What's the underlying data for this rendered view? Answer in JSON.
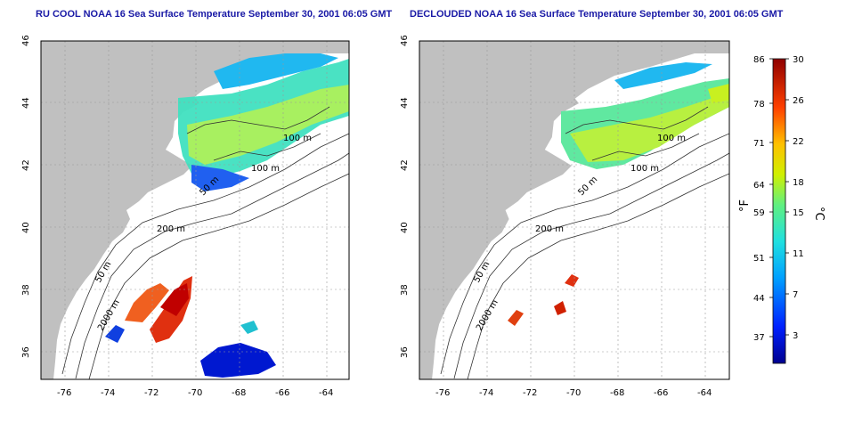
{
  "left_panel": {
    "title": "RU COOL NOAA 16 Sea Surface Temperature September 30, 2001 06:05 GMT",
    "contour_labels": [
      "50 m",
      "100 m",
      "100 m",
      "200 m",
      "50 m",
      "2000 m"
    ]
  },
  "right_panel": {
    "title": "DECLOUDED NOAA 16 Sea Surface Temperature September 30, 2001 06:05 GMT",
    "contour_labels": [
      "50 m",
      "100 m",
      "100 m",
      "200 m",
      "50 m",
      "2000 m"
    ]
  },
  "axes": {
    "lon_ticks": [
      "-76",
      "-74",
      "-72",
      "-70",
      "-68",
      "-66",
      "-64"
    ],
    "lat_ticks": [
      "46",
      "44",
      "42",
      "40",
      "38",
      "36"
    ]
  },
  "colorbar": {
    "fahrenheit_label": "°F",
    "celsius_label": "°C",
    "fahrenheit_ticks": [
      "86",
      "78",
      "71",
      "64",
      "59",
      "51",
      "44",
      "37"
    ],
    "celsius_ticks": [
      "30",
      "26",
      "22",
      "18",
      "15",
      "11",
      "7",
      "3"
    ]
  },
  "colors": {
    "land": "#c0c0c0",
    "title": "#1a1aa6",
    "cold": "#0000a0",
    "warm": "#b00000"
  }
}
